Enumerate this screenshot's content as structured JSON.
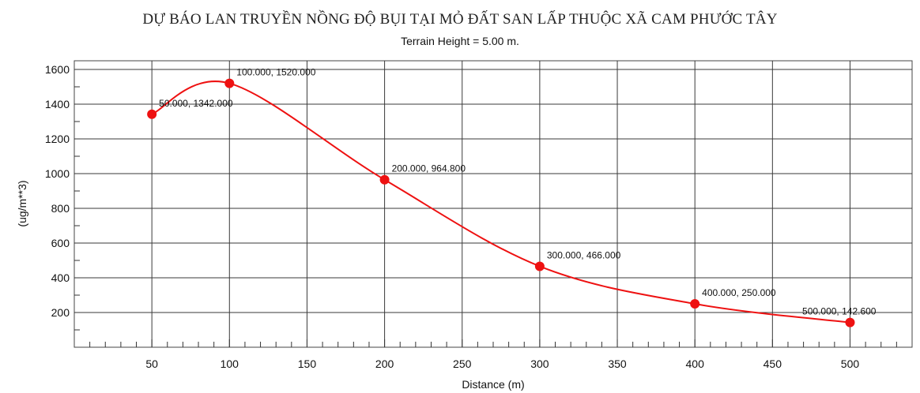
{
  "chart_data": {
    "type": "line",
    "title": "DỰ BÁO LAN TRUYỀN NỒNG ĐỘ BỤI TẠI MỎ ĐẤT SAN LẤP THUỘC XÃ CAM PHƯỚC TÂY",
    "subtitle": "Terrain Height = 5.00 m.",
    "xlabel": "Distance (m)",
    "ylabel": "(ug/m**3)",
    "xlim": [
      0,
      540
    ],
    "ylim": [
      0,
      1650
    ],
    "xticks": [
      50,
      100,
      150,
      200,
      250,
      300,
      350,
      400,
      450,
      500
    ],
    "yticks": [
      200,
      400,
      600,
      800,
      1000,
      1200,
      1400,
      1600
    ],
    "grid": true,
    "series": [
      {
        "color": "#ee1111",
        "points": [
          {
            "x": 50,
            "y": 1342,
            "label": "50.000, 1342.000"
          },
          {
            "x": 100,
            "y": 1520,
            "label": "100.000, 1520.000"
          },
          {
            "x": 200,
            "y": 964.8,
            "label": "200.000, 964.800"
          },
          {
            "x": 300,
            "y": 466,
            "label": "300.000, 466.000"
          },
          {
            "x": 400,
            "y": 250,
            "label": "400.000, 250.000"
          },
          {
            "x": 500,
            "y": 142.6,
            "label": "500.000, 142.600"
          }
        ]
      }
    ]
  }
}
